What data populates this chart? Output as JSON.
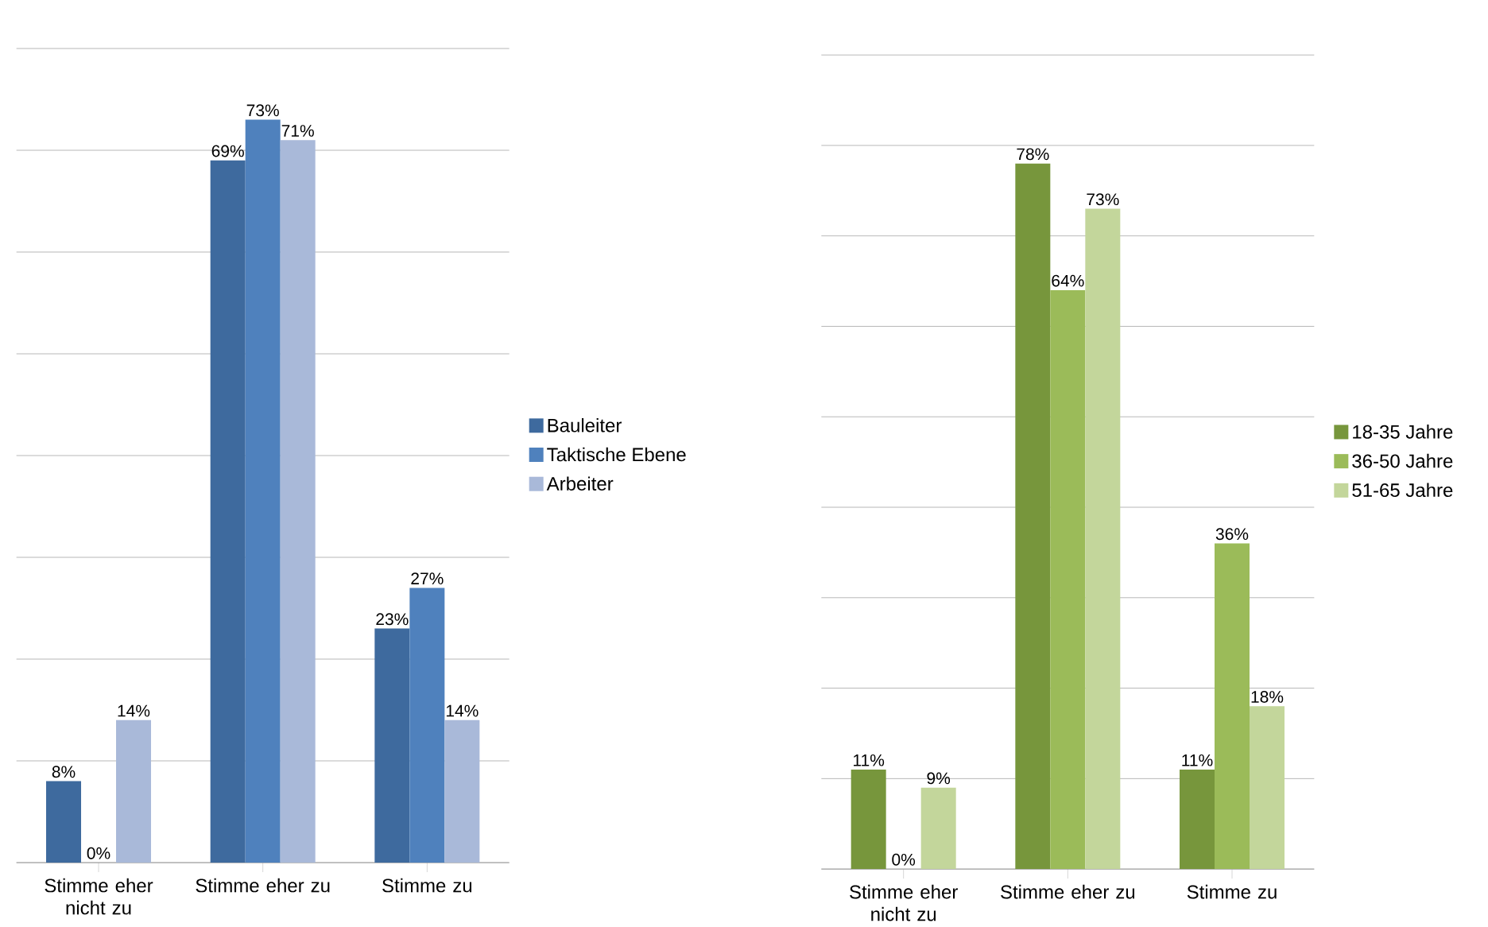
{
  "chart_data": [
    {
      "type": "bar",
      "categories": [
        "Stimme eher nicht zu",
        "Stimme eher zu",
        "Stimme zu"
      ],
      "ylim": [
        0,
        80
      ],
      "yticks": [
        {
          "value": 0,
          "label": null
        },
        {
          "value": 10,
          "label": null
        },
        {
          "value": 20,
          "label": null
        },
        {
          "value": 30,
          "label": null
        },
        {
          "value": 40,
          "label": null
        },
        {
          "value": 50,
          "label": null
        },
        {
          "value": 60,
          "label": null
        },
        {
          "value": 70,
          "label": null
        },
        {
          "value": 80,
          "label": null
        }
      ],
      "grid": "y",
      "legend": "right",
      "tick_labels": "x",
      "series": [
        {
          "name": "Bauleiter",
          "color": "#3e6a9e",
          "values": [
            8,
            69,
            23
          ],
          "value_labels": [
            "8%",
            "69%",
            "23%"
          ]
        },
        {
          "name": "Taktische Ebene",
          "color": "#4f81bd",
          "values": [
            0,
            73,
            27
          ],
          "value_labels": [
            "0%",
            "73%",
            "27%"
          ]
        },
        {
          "name": "Arbeiter",
          "color": "#a9b9d9",
          "values": [
            14,
            71,
            14
          ],
          "value_labels": [
            "14%",
            "71%",
            "14%"
          ]
        }
      ]
    },
    {
      "type": "bar",
      "categories": [
        "Stimme eher nicht zu",
        "Stimme eher zu",
        "Stimme zu"
      ],
      "ylim": [
        0,
        90
      ],
      "yticks": [
        {
          "value": 0,
          "label": null
        },
        {
          "value": 10,
          "label": null
        },
        {
          "value": 20,
          "label": null
        },
        {
          "value": 30,
          "label": null
        },
        {
          "value": 40,
          "label": null
        },
        {
          "value": 50,
          "label": null
        },
        {
          "value": 60,
          "label": null
        },
        {
          "value": 70,
          "label": null
        },
        {
          "value": 80,
          "label": null
        },
        {
          "value": 90,
          "label": null
        }
      ],
      "grid": "y",
      "legend": "right",
      "tick_labels": "x",
      "series": [
        {
          "name": "18-35 Jahre",
          "color": "#77963c",
          "values": [
            11,
            78,
            11
          ],
          "value_labels": [
            "11%",
            "78%",
            "11%"
          ]
        },
        {
          "name": "36-50 Jahre",
          "color": "#9bbb59",
          "values": [
            0,
            64,
            36
          ],
          "value_labels": [
            "0%",
            "64%",
            "36%"
          ]
        },
        {
          "name": "51-65 Jahre",
          "color": "#c3d69b",
          "values": [
            9,
            73,
            18
          ],
          "value_labels": [
            "9%",
            "73%",
            "18%"
          ]
        }
      ]
    }
  ]
}
